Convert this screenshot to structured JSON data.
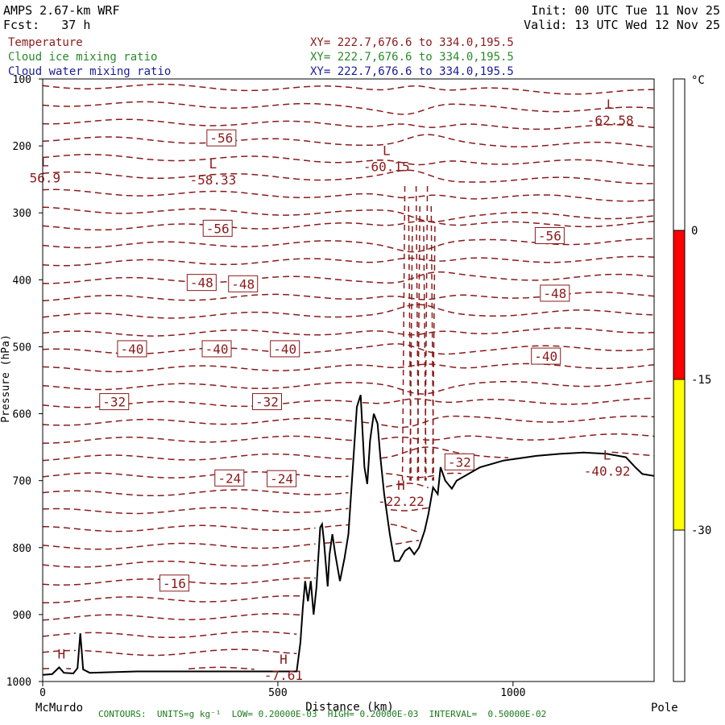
{
  "header": {
    "model": "AMPS 2.67-km WRF",
    "forecast": "Fcst:   37 h",
    "init": "Init: 00 UTC Tue 11 Nov 25",
    "valid": "Valid: 13 UTC Wed 12 Nov 25"
  },
  "legend": [
    {
      "name": "Temperature",
      "xy": "XY= 222.7,676.6 to 334.0,195.5",
      "color": "#8b1a1a"
    },
    {
      "name": "Cloud ice mixing ratio",
      "xy": "XY= 222.7,676.6 to 334.0,195.5",
      "color": "#2a8a2a"
    },
    {
      "name": "Cloud water mixing ratio",
      "xy": "XY= 222.7,676.6 to 334.0,195.5",
      "color": "#1a1a9a"
    }
  ],
  "footer": "CONTOURS:  UNITS=g kg⁻¹  LOW= 0.20000E-03  HIGH= 0.20000E-03  INTERVAL=  0.50000E-02",
  "colors": {
    "temperature": "#8b1a1a",
    "terrain": "#000000",
    "ice": "#2a8a2a",
    "water": "#1a1a9a"
  },
  "chart_data": {
    "type": "contour",
    "xlabel": "Distance (km)",
    "ylabel": "Pressure (hPa)",
    "xlim": [
      0,
      1300
    ],
    "ylim": [
      1000,
      100
    ],
    "xticks": [
      0,
      500,
      1000
    ],
    "yticks": [
      100,
      200,
      300,
      400,
      500,
      600,
      700,
      800,
      900,
      1000
    ],
    "x_endpoints": {
      "left": "McMurdo",
      "right": "Pole"
    },
    "isotherm_labels": [
      {
        "text": "-56",
        "x": 380,
        "p": 188
      },
      {
        "text": "-56",
        "x": 372,
        "p": 323
      },
      {
        "text": "-56",
        "x": 1078,
        "p": 334
      },
      {
        "text": "-48",
        "x": 338,
        "p": 404
      },
      {
        "text": "-48",
        "x": 426,
        "p": 406
      },
      {
        "text": "-48",
        "x": 1089,
        "p": 420
      },
      {
        "text": "-40",
        "x": 190,
        "p": 503
      },
      {
        "text": "-40",
        "x": 370,
        "p": 503
      },
      {
        "text": "-40",
        "x": 515,
        "p": 503
      },
      {
        "text": "-40",
        "x": 1070,
        "p": 514
      },
      {
        "text": "-32",
        "x": 152,
        "p": 582
      },
      {
        "text": "-32",
        "x": 477,
        "p": 582
      },
      {
        "text": "-32",
        "x": 886,
        "p": 672
      },
      {
        "text": "-24",
        "x": 397,
        "p": 696
      },
      {
        "text": "-24",
        "x": 508,
        "p": 697
      },
      {
        "text": "-16",
        "x": 280,
        "p": 853
      }
    ],
    "extrema": [
      {
        "type": "L",
        "value": "-62.58",
        "x": 1207,
        "p": 159
      },
      {
        "type": "L",
        "value": "56.9",
        "x": 5,
        "p": 245
      },
      {
        "type": "L",
        "value": "-58.33",
        "x": 362,
        "p": 248
      },
      {
        "type": "L",
        "value": "-60.15",
        "x": 731,
        "p": 228
      },
      {
        "type": "L",
        "value": "-40.92",
        "x": 1200,
        "p": 683
      },
      {
        "type": "H",
        "value": "-22.22",
        "x": 762,
        "p": 728
      },
      {
        "type": "H",
        "value": "-7.61",
        "x": 512,
        "p": 988
      },
      {
        "type": "H",
        "value": "",
        "x": 40,
        "p": 980
      }
    ],
    "terrain": [
      [
        0,
        990
      ],
      [
        20,
        989
      ],
      [
        35,
        979
      ],
      [
        45,
        987
      ],
      [
        65,
        988
      ],
      [
        74,
        980
      ],
      [
        80,
        928
      ],
      [
        86,
        982
      ],
      [
        100,
        987
      ],
      [
        200,
        985
      ],
      [
        300,
        985
      ],
      [
        400,
        985
      ],
      [
        500,
        985
      ],
      [
        540,
        985
      ],
      [
        548,
        942
      ],
      [
        553,
        890
      ],
      [
        558,
        850
      ],
      [
        564,
        880
      ],
      [
        570,
        850
      ],
      [
        576,
        900
      ],
      [
        582,
        860
      ],
      [
        590,
        770
      ],
      [
        594,
        765
      ],
      [
        598,
        790
      ],
      [
        606,
        858
      ],
      [
        610,
        810
      ],
      [
        616,
        780
      ],
      [
        622,
        810
      ],
      [
        632,
        850
      ],
      [
        642,
        815
      ],
      [
        650,
        780
      ],
      [
        668,
        590
      ],
      [
        676,
        572
      ],
      [
        684,
        680
      ],
      [
        690,
        705
      ],
      [
        696,
        640
      ],
      [
        704,
        600
      ],
      [
        712,
        615
      ],
      [
        718,
        665
      ],
      [
        726,
        720
      ],
      [
        738,
        780
      ],
      [
        748,
        820
      ],
      [
        758,
        820
      ],
      [
        770,
        805
      ],
      [
        780,
        800
      ],
      [
        790,
        810
      ],
      [
        800,
        800
      ],
      [
        812,
        775
      ],
      [
        820,
        750
      ],
      [
        830,
        710
      ],
      [
        840,
        720
      ],
      [
        846,
        680
      ],
      [
        856,
        700
      ],
      [
        870,
        712
      ],
      [
        880,
        700
      ],
      [
        900,
        692
      ],
      [
        930,
        680
      ],
      [
        980,
        670
      ],
      [
        1050,
        663
      ],
      [
        1100,
        660
      ],
      [
        1150,
        658
      ],
      [
        1200,
        660
      ],
      [
        1240,
        665
      ],
      [
        1260,
        680
      ],
      [
        1275,
        690
      ],
      [
        1300,
        693
      ]
    ],
    "colorbar": {
      "unit": "°C",
      "labels": [
        "0",
        "-15",
        "-30"
      ],
      "bands": [
        {
          "from": 0,
          "to": -15,
          "color": "#ff0000"
        },
        {
          "from": -15,
          "to": -30,
          "color": "#ffff00"
        }
      ]
    }
  }
}
